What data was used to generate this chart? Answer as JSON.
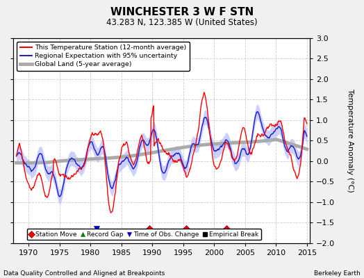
{
  "title": "WINCHESTER 3 W F STN",
  "subtitle": "43.283 N, 123.385 W (United States)",
  "ylabel": "Temperature Anomaly (°C)",
  "xlabel_left": "Data Quality Controlled and Aligned at Breakpoints",
  "xlabel_right": "Berkeley Earth",
  "ylim": [
    -2.0,
    3.0
  ],
  "xlim": [
    1967.5,
    2015.5
  ],
  "yticks": [
    -2,
    -1.5,
    -1,
    -0.5,
    0,
    0.5,
    1,
    1.5,
    2,
    2.5,
    3
  ],
  "xticks": [
    1970,
    1975,
    1980,
    1985,
    1990,
    1995,
    2000,
    2005,
    2010,
    2015
  ],
  "background_color": "#f0f0f0",
  "plot_bg_color": "#ffffff",
  "station_move_years": [
    1989.5,
    1995.5,
    2002.0
  ],
  "obs_change_years": [
    1981.0
  ],
  "record_gap_years": [],
  "empirical_break_years": [],
  "marker_y": -1.65,
  "figsize": [
    5.24,
    4.0
  ],
  "dpi": 100
}
